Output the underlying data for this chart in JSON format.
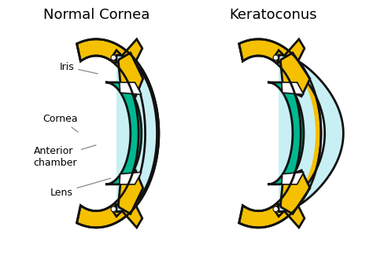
{
  "title_left": "Normal Cornea",
  "title_right": "Keratoconus",
  "title_fontsize": 13,
  "label_fontsize": 9,
  "bg_color": "#ffffff",
  "sclera_color": "#F5C000",
  "sclera_edge": "#111111",
  "cornea_fill": "#c8f0f4",
  "cornea_edge": "#111111",
  "lens_fill": "#00b890",
  "lens_edge": "#111111",
  "white_fill": "#ffffff",
  "labels": [
    "Iris",
    "Cornea",
    "Anterior\nchamber",
    "Lens"
  ],
  "lw": 2.0
}
